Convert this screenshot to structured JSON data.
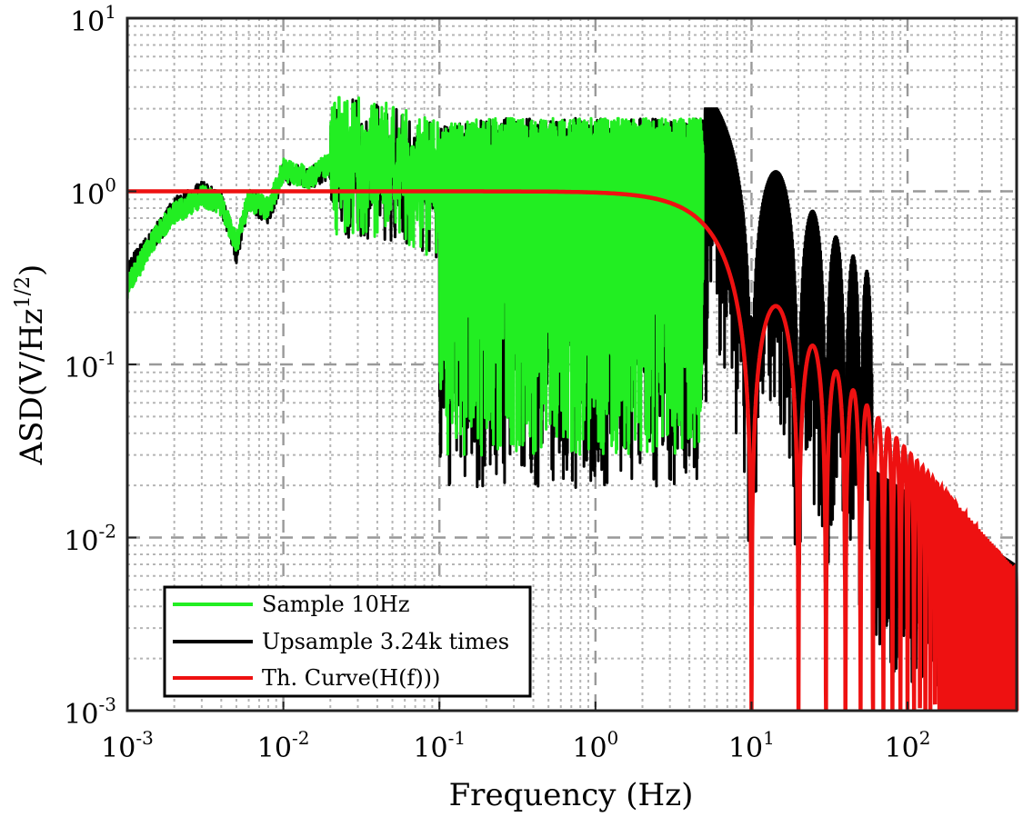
{
  "chart_data": {
    "type": "line",
    "xscale": "log",
    "yscale": "log",
    "xlim": [
      0.001,
      500
    ],
    "ylim": [
      0.001,
      10
    ],
    "xlabel": "Frequency (Hz)",
    "ylabel_main": "ASD(V/Hz",
    "ylabel_sup": "1/2",
    "ylabel_end": ")",
    "grid": "major and minor, dashed",
    "legend_location": "lower-left",
    "x_ticks": [
      {
        "base": "10",
        "exp": "-3",
        "value": 0.001
      },
      {
        "base": "10",
        "exp": "-2",
        "value": 0.01
      },
      {
        "base": "10",
        "exp": "-1",
        "value": 0.1
      },
      {
        "base": "10",
        "exp": "0",
        "value": 1
      },
      {
        "base": "10",
        "exp": "1",
        "value": 10
      },
      {
        "base": "10",
        "exp": "2",
        "value": 100
      }
    ],
    "y_ticks": [
      {
        "base": "10",
        "exp": "-3",
        "value": 0.001
      },
      {
        "base": "10",
        "exp": "-2",
        "value": 0.01
      },
      {
        "base": "10",
        "exp": "-1",
        "value": 0.1
      },
      {
        "base": "10",
        "exp": "0",
        "value": 1
      },
      {
        "base": "10",
        "exp": "1",
        "value": 10
      }
    ],
    "series": [
      {
        "name": "Upsample 3.24k times",
        "color": "#000000",
        "description": "noisy spectrum of the upsampled signal, continues beyond 5 Hz as decaying sinc-like lobes",
        "x": [
          0.001,
          0.0015,
          0.002,
          0.003,
          0.004,
          0.005,
          0.006,
          0.008,
          0.01,
          0.015,
          0.02,
          0.03,
          0.05,
          0.1,
          0.2,
          0.5,
          1,
          2,
          4.9,
          6,
          8,
          10,
          14,
          20,
          30,
          50,
          100,
          200,
          500
        ],
        "y": [
          0.35,
          0.55,
          0.8,
          1.0,
          0.85,
          0.45,
          0.9,
          0.75,
          1.3,
          1.2,
          1.4,
          1.5,
          1.4,
          1.1,
          1.2,
          1.2,
          1.2,
          1.2,
          1.2,
          0.4,
          0.2,
          0.1,
          0.22,
          0.09,
          0.05,
          0.03,
          0.015,
          0.008,
          0.003
        ]
      },
      {
        "name": "Sample 10Hz",
        "color": "#22ee22",
        "description": "noisy spectrum of the 10 Hz sampled signal, ends at Nyquist 5 Hz",
        "x": [
          0.001,
          0.0015,
          0.002,
          0.003,
          0.004,
          0.005,
          0.006,
          0.008,
          0.01,
          0.015,
          0.02,
          0.03,
          0.05,
          0.1,
          0.2,
          0.5,
          1,
          2,
          5
        ],
        "y": [
          0.28,
          0.55,
          0.75,
          0.95,
          0.85,
          0.5,
          0.9,
          0.8,
          1.35,
          1.2,
          1.5,
          1.6,
          1.4,
          1.1,
          1.2,
          1.2,
          1.2,
          1.2,
          1.2
        ]
      },
      {
        "name": "Th. Curve(H(f)))",
        "color": "#ee1111",
        "description": "theoretical |sinc(f/10Hz)| response: flat at 1 then nulls at 10, 20, 30... Hz",
        "formula": "|sin(pi*f/10)/(pi*f/10)|",
        "x": [
          0.001,
          0.1,
          1,
          3,
          5,
          7,
          9,
          10,
          15,
          20,
          25,
          30,
          35,
          40,
          45,
          50,
          100,
          500
        ],
        "y": [
          1.0,
          1.0,
          0.984,
          0.858,
          0.637,
          0.347,
          0.109,
          0.001,
          0.212,
          0.001,
          0.127,
          0.001,
          0.091,
          0.001,
          0.071,
          0.001,
          0.001,
          0.001
        ]
      }
    ]
  }
}
